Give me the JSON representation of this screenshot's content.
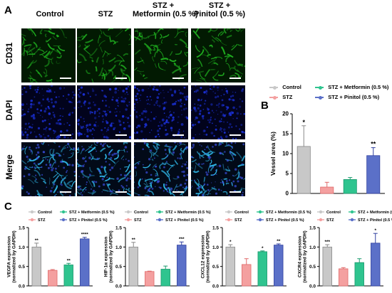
{
  "panel_a": {
    "letter": "A",
    "columns": [
      "Control",
      "STZ",
      "STZ +\nMetformin (0.5 %)",
      "STZ +\nPinitol (0.5 %)"
    ],
    "rows": [
      "CD31",
      "DAPI",
      "Merge"
    ]
  },
  "panel_b": {
    "letter": "B"
  },
  "panel_c": {
    "letter": "C"
  },
  "legend_labels": {
    "control": "Control",
    "stz": "STZ",
    "metformin": "STZ + Metformin (0.5 %)",
    "pinitol": "STZ + Pinitol (0.5 %)"
  },
  "colors": {
    "control": "#c8c8c8",
    "stz": "#f4a0a0",
    "metformin": "#2fc48f",
    "pinitol": "#5b70c8",
    "cd31": "#1fae1f",
    "dapi": "#1a2fd0",
    "merge": "#2fb8e8"
  },
  "chart_data": [
    {
      "type": "bar",
      "panel": "B",
      "categories": [
        "Control",
        "STZ",
        "STZ + Metformin (0.5 %)",
        "STZ + Pinitol (0.5 %)"
      ],
      "values": [
        11.8,
        1.6,
        3.5,
        9.5
      ],
      "errors": [
        5.2,
        1.2,
        0.5,
        2.0
      ],
      "significance": [
        "*",
        "",
        "",
        "**"
      ],
      "ylabel": "Vessel area (%)",
      "ylim": [
        0,
        20
      ],
      "yticks": [
        "0",
        "5",
        "10",
        "15",
        "20"
      ]
    },
    {
      "type": "bar",
      "panel": "C1",
      "categories": [
        "Control",
        "STZ",
        "STZ + Metformin (0.5 %)",
        "STZ + Pinitol (0.5 %)"
      ],
      "values": [
        1.0,
        0.4,
        0.54,
        1.21
      ],
      "errors": [
        0.1,
        0.02,
        0.04,
        0.04
      ],
      "significance": [
        "**",
        "",
        "**",
        "****"
      ],
      "ylabel": "VEGFA expression\n(normalized by GAPDH)",
      "ylim": [
        0,
        1.5
      ],
      "yticks": [
        "0.0",
        "0.5",
        "1.0",
        "1.5"
      ]
    },
    {
      "type": "bar",
      "panel": "C2",
      "categories": [
        "Control",
        "STZ",
        "STZ + Metformin (0.5 %)",
        "STZ + Pinitol (0.5 %)"
      ],
      "values": [
        1.0,
        0.37,
        0.43,
        1.05
      ],
      "errors": [
        0.12,
        0.01,
        0.08,
        0.08
      ],
      "significance": [
        "**",
        "",
        "",
        "***"
      ],
      "ylabel": "HIF-1α expression\n(normalized by GAPDH)",
      "ylim": [
        0,
        1.5
      ],
      "yticks": [
        "0.0",
        "0.5",
        "1.0",
        "1.5"
      ]
    },
    {
      "type": "bar",
      "panel": "C3",
      "categories": [
        "Control",
        "STZ",
        "STZ + Metformin (0.5 %)",
        "STZ + Pinitol (0.5 %)"
      ],
      "values": [
        1.0,
        0.55,
        0.88,
        1.05
      ],
      "errors": [
        0.06,
        0.15,
        0.02,
        0.03
      ],
      "significance": [
        "*",
        "",
        "*",
        "**"
      ],
      "ylabel": "CXCL12 expression\n(normalized by GAPDH)",
      "ylim": [
        0,
        1.5
      ],
      "yticks": [
        "0.0",
        "0.5",
        "1.0",
        "1.5"
      ]
    },
    {
      "type": "bar",
      "panel": "C4",
      "categories": [
        "Control",
        "STZ",
        "STZ + Metformin (0.5 %)",
        "STZ + Pinitol (0.5 %)"
      ],
      "values": [
        1.0,
        0.44,
        0.6,
        1.1
      ],
      "errors": [
        0.06,
        0.03,
        0.1,
        0.25
      ],
      "significance": [
        "***",
        "",
        "",
        "*"
      ],
      "ylabel": "CXCR4 expression\n(normalized by GAPDH)",
      "ylim": [
        0,
        1.5
      ],
      "yticks": [
        "0.0",
        "0.5",
        "1.0",
        "1.5"
      ]
    }
  ]
}
